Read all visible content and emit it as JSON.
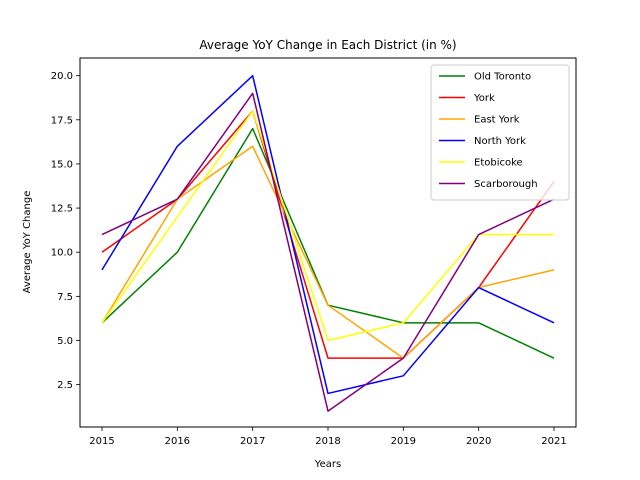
{
  "chart_data": {
    "type": "line",
    "title": "Average YoY Change in Each District (in %)",
    "xlabel": "Years",
    "ylabel": "Average YoY Change",
    "x": [
      2015,
      2016,
      2017,
      2018,
      2019,
      2020,
      2021
    ],
    "ylim": [
      0.1,
      21
    ],
    "yticks": [
      2.5,
      5.0,
      7.5,
      10.0,
      12.5,
      15.0,
      17.5,
      20.0
    ],
    "ytick_labels": [
      "2.5",
      "5.0",
      "7.5",
      "10.0",
      "12.5",
      "15.0",
      "17.5",
      "20.0"
    ],
    "grid": false,
    "legend_position": "top-right",
    "series": [
      {
        "name": "Old Toronto",
        "color": "#008000",
        "values": [
          6,
          10,
          17,
          7,
          6,
          6,
          4
        ]
      },
      {
        "name": "York",
        "color": "#ff0000",
        "values": [
          10,
          13,
          18,
          4,
          4,
          8,
          14
        ]
      },
      {
        "name": "East York",
        "color": "#ffa500",
        "values": [
          6,
          13,
          16,
          7,
          4,
          8,
          9
        ]
      },
      {
        "name": "North York",
        "color": "#0000ff",
        "values": [
          9,
          16,
          20,
          2,
          3,
          8,
          6
        ]
      },
      {
        "name": "Etobicoke",
        "color": "#ffff00",
        "values": [
          6,
          12,
          18,
          5,
          6,
          11,
          11
        ]
      },
      {
        "name": "Scarborough",
        "color": "#800080",
        "values": [
          11,
          13,
          19,
          1,
          4,
          11,
          13
        ]
      }
    ]
  }
}
